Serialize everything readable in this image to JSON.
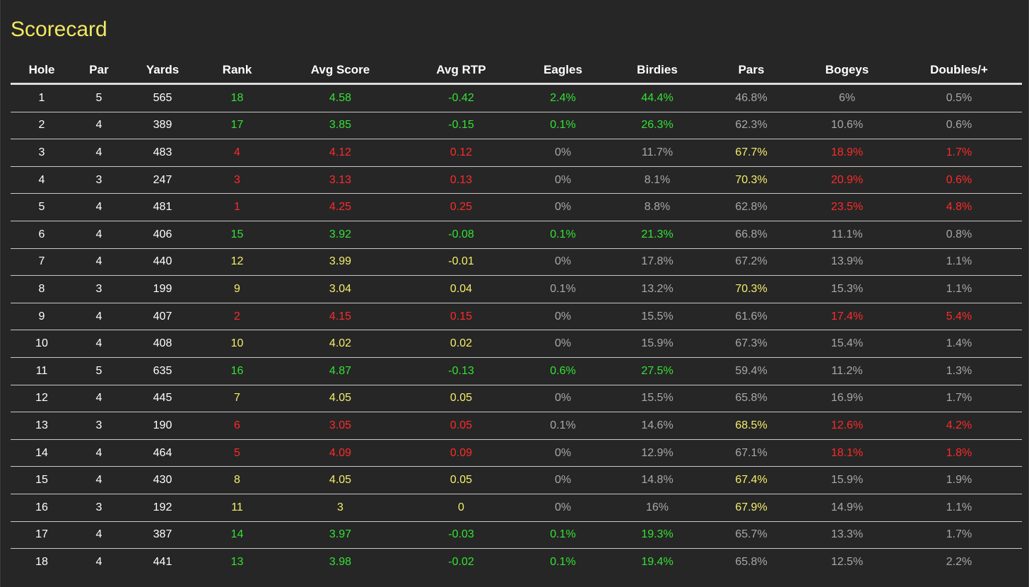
{
  "page": {
    "title": "Scorecard",
    "title_color": "#f2e860",
    "background": "#262626"
  },
  "colors": {
    "white": "#ffffff",
    "green": "#33e233",
    "red": "#ff2a2a",
    "yellow": "#f5ee6a",
    "gray": "#a8a8a8"
  },
  "columns": [
    "Hole",
    "Par",
    "Yards",
    "Rank",
    "Avg Score",
    "Avg RTP",
    "Eagles",
    "Birdies",
    "Pars",
    "Bogeys",
    "Doubles/+"
  ],
  "rows": [
    {
      "cells": [
        "1",
        "5",
        "565",
        "18",
        "4.58",
        "-0.42",
        "2.4%",
        "44.4%",
        "46.8%",
        "6%",
        "0.5%"
      ],
      "colors": [
        "white",
        "white",
        "white",
        "green",
        "green",
        "green",
        "green",
        "green",
        "gray",
        "gray",
        "gray"
      ]
    },
    {
      "cells": [
        "2",
        "4",
        "389",
        "17",
        "3.85",
        "-0.15",
        "0.1%",
        "26.3%",
        "62.3%",
        "10.6%",
        "0.6%"
      ],
      "colors": [
        "white",
        "white",
        "white",
        "green",
        "green",
        "green",
        "green",
        "green",
        "gray",
        "gray",
        "gray"
      ]
    },
    {
      "cells": [
        "3",
        "4",
        "483",
        "4",
        "4.12",
        "0.12",
        "0%",
        "11.7%",
        "67.7%",
        "18.9%",
        "1.7%"
      ],
      "colors": [
        "white",
        "white",
        "white",
        "red",
        "red",
        "red",
        "gray",
        "gray",
        "yellow",
        "red",
        "red"
      ]
    },
    {
      "cells": [
        "4",
        "3",
        "247",
        "3",
        "3.13",
        "0.13",
        "0%",
        "8.1%",
        "70.3%",
        "20.9%",
        "0.6%"
      ],
      "colors": [
        "white",
        "white",
        "white",
        "red",
        "red",
        "red",
        "gray",
        "gray",
        "yellow",
        "red",
        "red"
      ]
    },
    {
      "cells": [
        "5",
        "4",
        "481",
        "1",
        "4.25",
        "0.25",
        "0%",
        "8.8%",
        "62.8%",
        "23.5%",
        "4.8%"
      ],
      "colors": [
        "white",
        "white",
        "white",
        "red",
        "red",
        "red",
        "gray",
        "gray",
        "gray",
        "red",
        "red"
      ]
    },
    {
      "cells": [
        "6",
        "4",
        "406",
        "15",
        "3.92",
        "-0.08",
        "0.1%",
        "21.3%",
        "66.8%",
        "11.1%",
        "0.8%"
      ],
      "colors": [
        "white",
        "white",
        "white",
        "green",
        "green",
        "green",
        "green",
        "green",
        "gray",
        "gray",
        "gray"
      ]
    },
    {
      "cells": [
        "7",
        "4",
        "440",
        "12",
        "3.99",
        "-0.01",
        "0%",
        "17.8%",
        "67.2%",
        "13.9%",
        "1.1%"
      ],
      "colors": [
        "white",
        "white",
        "white",
        "yellow",
        "yellow",
        "yellow",
        "gray",
        "gray",
        "gray",
        "gray",
        "gray"
      ]
    },
    {
      "cells": [
        "8",
        "3",
        "199",
        "9",
        "3.04",
        "0.04",
        "0.1%",
        "13.2%",
        "70.3%",
        "15.3%",
        "1.1%"
      ],
      "colors": [
        "white",
        "white",
        "white",
        "yellow",
        "yellow",
        "yellow",
        "gray",
        "gray",
        "yellow",
        "gray",
        "gray"
      ]
    },
    {
      "cells": [
        "9",
        "4",
        "407",
        "2",
        "4.15",
        "0.15",
        "0%",
        "15.5%",
        "61.6%",
        "17.4%",
        "5.4%"
      ],
      "colors": [
        "white",
        "white",
        "white",
        "red",
        "red",
        "red",
        "gray",
        "gray",
        "gray",
        "red",
        "red"
      ]
    },
    {
      "cells": [
        "10",
        "4",
        "408",
        "10",
        "4.02",
        "0.02",
        "0%",
        "15.9%",
        "67.3%",
        "15.4%",
        "1.4%"
      ],
      "colors": [
        "white",
        "white",
        "white",
        "yellow",
        "yellow",
        "yellow",
        "gray",
        "gray",
        "gray",
        "gray",
        "gray"
      ]
    },
    {
      "cells": [
        "11",
        "5",
        "635",
        "16",
        "4.87",
        "-0.13",
        "0.6%",
        "27.5%",
        "59.4%",
        "11.2%",
        "1.3%"
      ],
      "colors": [
        "white",
        "white",
        "white",
        "green",
        "green",
        "green",
        "green",
        "green",
        "gray",
        "gray",
        "gray"
      ]
    },
    {
      "cells": [
        "12",
        "4",
        "445",
        "7",
        "4.05",
        "0.05",
        "0%",
        "15.5%",
        "65.8%",
        "16.9%",
        "1.7%"
      ],
      "colors": [
        "white",
        "white",
        "white",
        "yellow",
        "yellow",
        "yellow",
        "gray",
        "gray",
        "gray",
        "gray",
        "gray"
      ]
    },
    {
      "cells": [
        "13",
        "3",
        "190",
        "6",
        "3.05",
        "0.05",
        "0.1%",
        "14.6%",
        "68.5%",
        "12.6%",
        "4.2%"
      ],
      "colors": [
        "white",
        "white",
        "white",
        "red",
        "red",
        "red",
        "gray",
        "gray",
        "yellow",
        "red",
        "red"
      ]
    },
    {
      "cells": [
        "14",
        "4",
        "464",
        "5",
        "4.09",
        "0.09",
        "0%",
        "12.9%",
        "67.1%",
        "18.1%",
        "1.8%"
      ],
      "colors": [
        "white",
        "white",
        "white",
        "red",
        "red",
        "red",
        "gray",
        "gray",
        "gray",
        "red",
        "red"
      ]
    },
    {
      "cells": [
        "15",
        "4",
        "430",
        "8",
        "4.05",
        "0.05",
        "0%",
        "14.8%",
        "67.4%",
        "15.9%",
        "1.9%"
      ],
      "colors": [
        "white",
        "white",
        "white",
        "yellow",
        "yellow",
        "yellow",
        "gray",
        "gray",
        "yellow",
        "gray",
        "gray"
      ]
    },
    {
      "cells": [
        "16",
        "3",
        "192",
        "11",
        "3",
        "0",
        "0%",
        "16%",
        "67.9%",
        "14.9%",
        "1.1%"
      ],
      "colors": [
        "white",
        "white",
        "white",
        "yellow",
        "yellow",
        "yellow",
        "gray",
        "gray",
        "yellow",
        "gray",
        "gray"
      ]
    },
    {
      "cells": [
        "17",
        "4",
        "387",
        "14",
        "3.97",
        "-0.03",
        "0.1%",
        "19.3%",
        "65.7%",
        "13.3%",
        "1.7%"
      ],
      "colors": [
        "white",
        "white",
        "white",
        "green",
        "green",
        "green",
        "green",
        "green",
        "gray",
        "gray",
        "gray"
      ]
    },
    {
      "cells": [
        "18",
        "4",
        "441",
        "13",
        "3.98",
        "-0.02",
        "0.1%",
        "19.4%",
        "65.8%",
        "12.5%",
        "2.2%"
      ],
      "colors": [
        "white",
        "white",
        "white",
        "green",
        "green",
        "green",
        "green",
        "green",
        "gray",
        "gray",
        "gray"
      ]
    }
  ]
}
